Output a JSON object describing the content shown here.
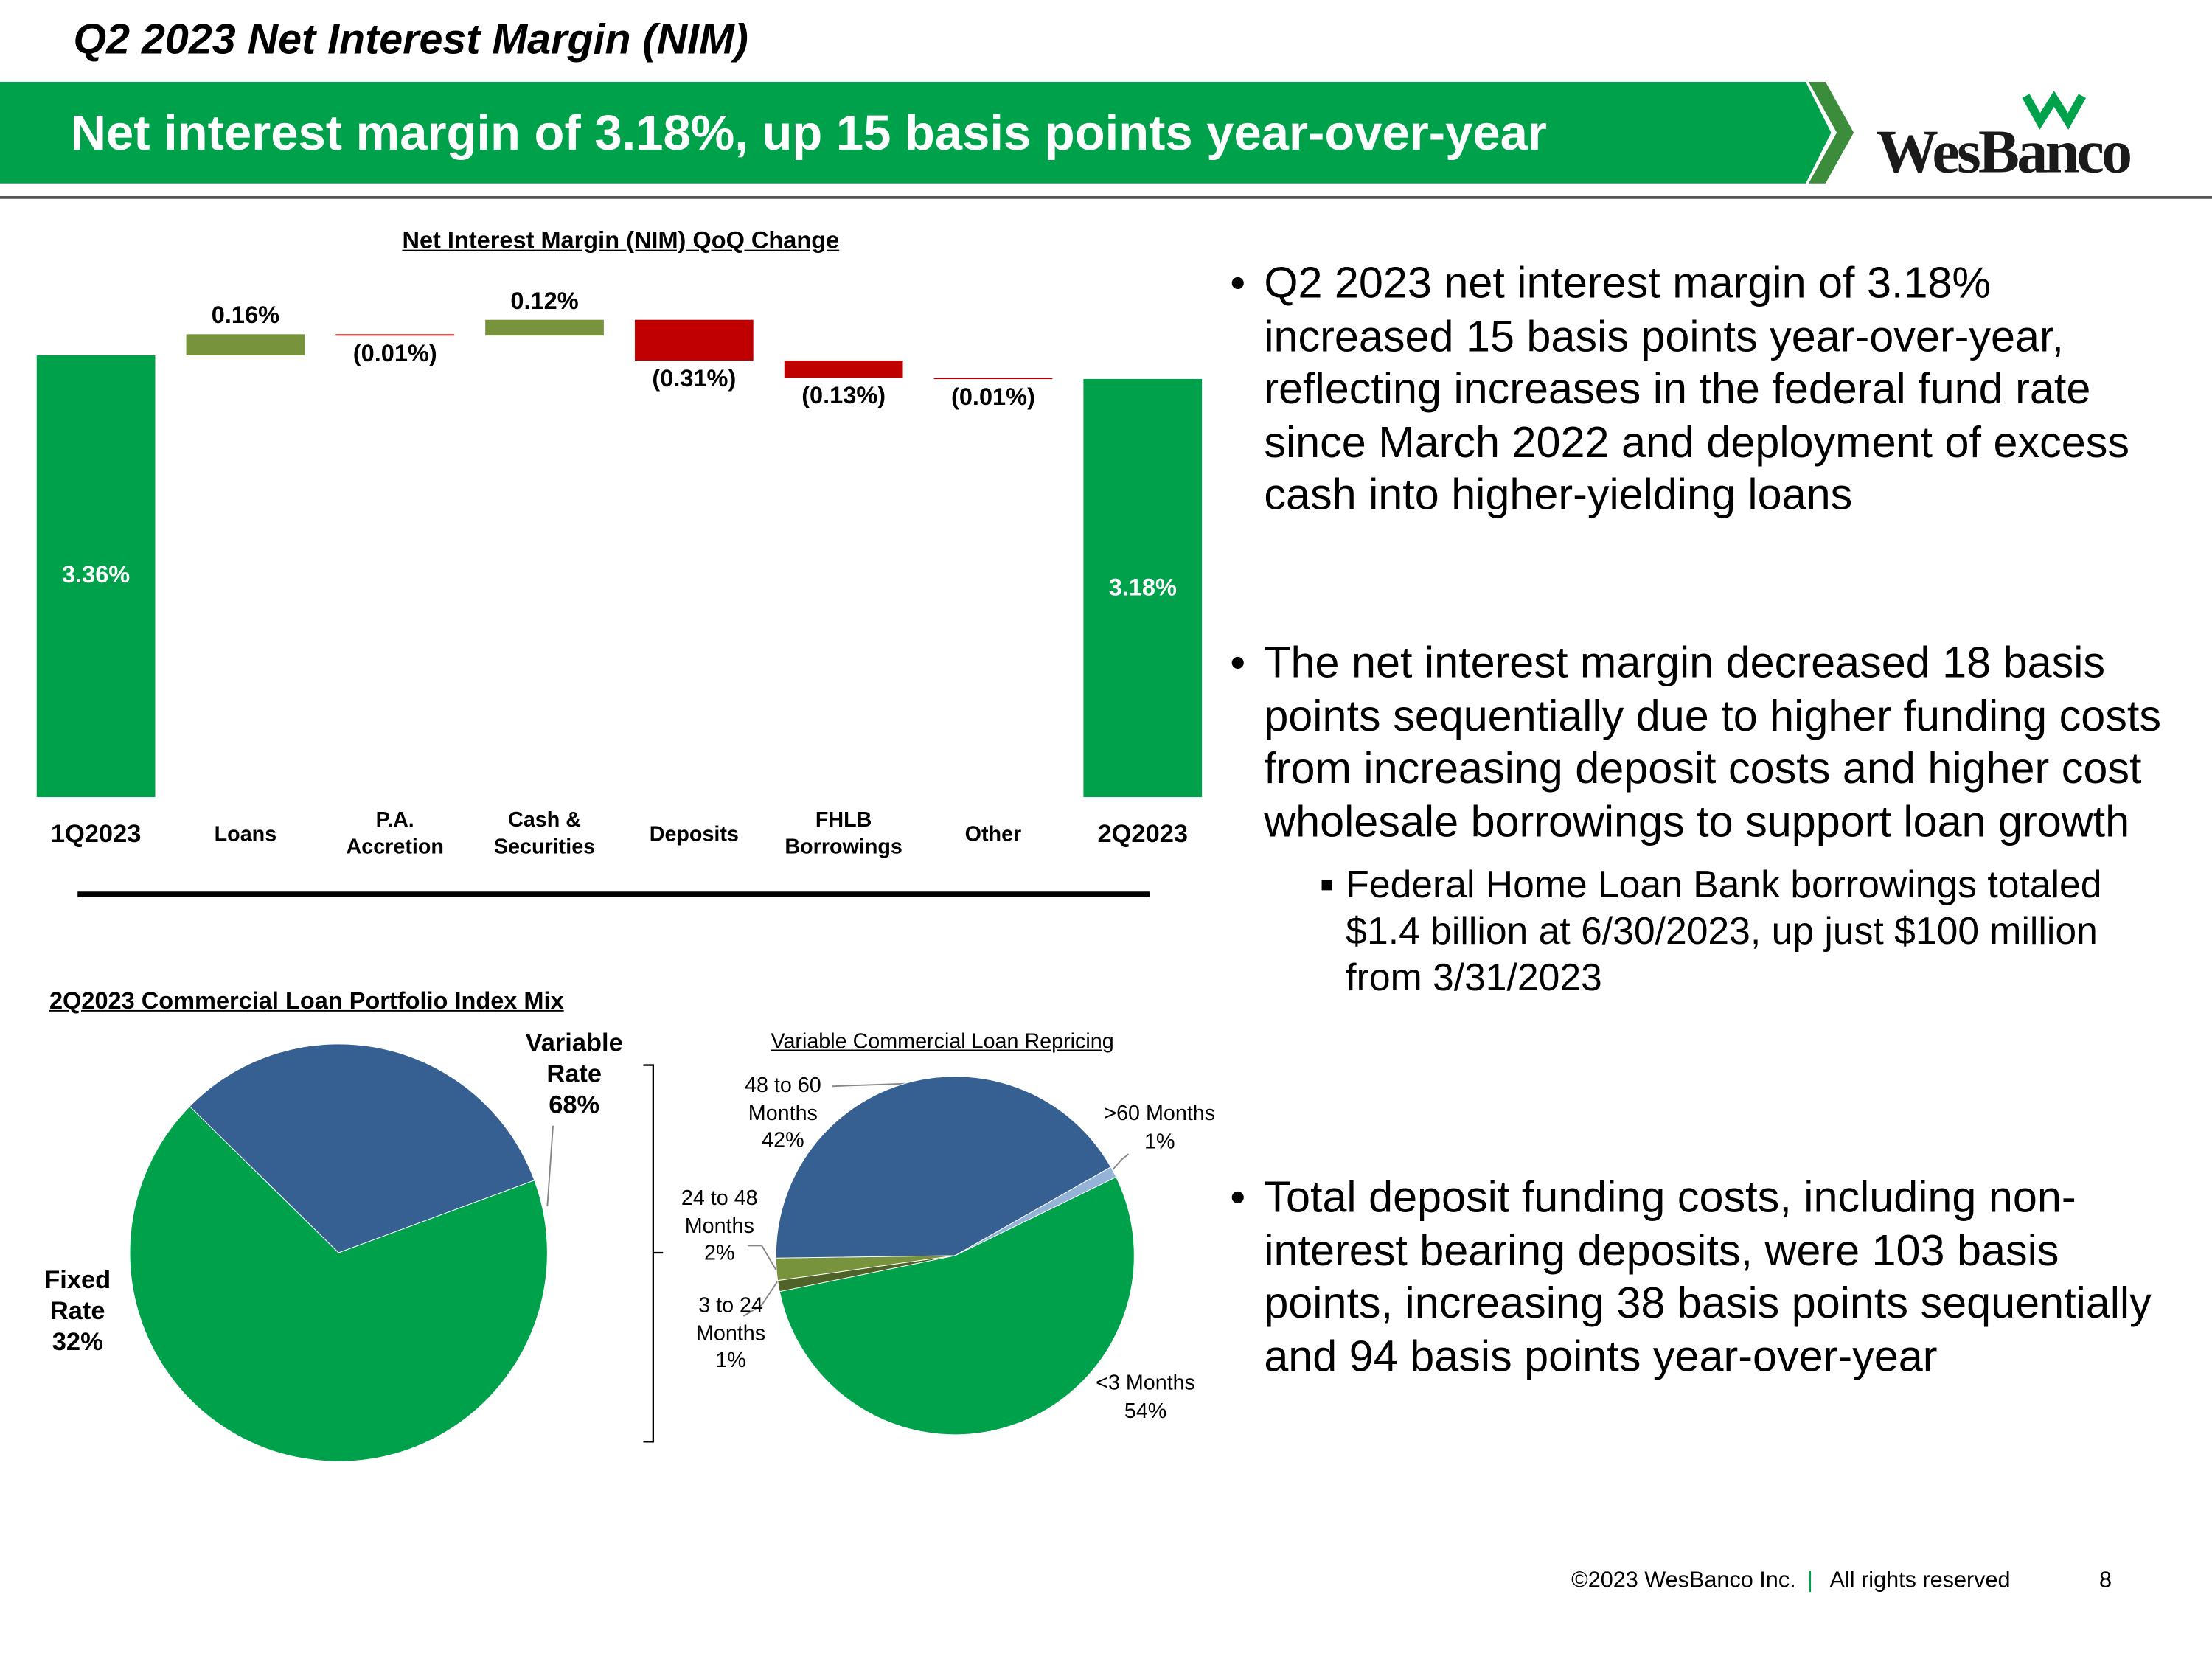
{
  "header": {
    "title": "Q2 2023 Net Interest Margin (NIM)",
    "banner": "Net interest margin of 3.18%, up 15 basis points year-over-year",
    "logo": "WesBanco"
  },
  "chart_data": [
    {
      "type": "waterfall",
      "title": "Net Interest Margin (NIM) QoQ Change",
      "categories": [
        "1Q2023",
        "Loans",
        "P.A. Accretion",
        "Cash & Securities",
        "Deposits",
        "FHLB Borrowings",
        "Other",
        "2Q2023"
      ],
      "values": [
        3.36,
        0.16,
        -0.01,
        0.12,
        -0.31,
        -0.13,
        -0.01,
        3.18
      ],
      "value_labels": [
        "3.36%",
        "0.16%",
        "(0.01%)",
        "0.12%",
        "(0.31%)",
        "(0.13%)",
        "(0.01%)",
        "3.18%"
      ],
      "colors": [
        "#00a14b",
        "#77933c",
        "#c00000",
        "#77933c",
        "#c00000",
        "#c00000",
        "#c00000",
        "#00a14b"
      ]
    },
    {
      "type": "pie",
      "title": "2Q2023 Commercial Loan Portfolio Index Mix",
      "categories": [
        "Fixed Rate",
        "Variable Rate"
      ],
      "values": [
        32,
        68
      ],
      "value_labels": [
        "32%",
        "68%"
      ],
      "colors": [
        "#376092",
        "#00a14b"
      ]
    },
    {
      "type": "pie",
      "title": "Variable Commercial Loan Repricing",
      "categories": [
        "<3 Months",
        "3 to 24 Months",
        "24 to 48 Months",
        "48 to 60 Months",
        ">60 Months"
      ],
      "values": [
        54,
        1,
        2,
        42,
        1
      ],
      "value_labels": [
        "54%",
        "1%",
        "2%",
        "42%",
        "1%"
      ],
      "colors": [
        "#00a14b",
        "#4f6228",
        "#77933c",
        "#376092",
        "#95b3d7"
      ]
    }
  ],
  "bullets": [
    {
      "text": "Q2 2023 net interest margin of 3.18% increased 15 basis points year-over-year, reflecting increases in the federal fund rate since March 2022 and deployment of excess cash into higher-yielding loans"
    },
    {
      "text": "The net interest margin decreased 18 basis points sequentially due to higher funding costs from increasing deposit costs and higher cost wholesale borrowings to support loan growth",
      "sub": [
        "Federal Home Loan Bank borrowings totaled $1.4 billion at 6/30/2023, up just $100 million from 3/31/2023"
      ]
    },
    {
      "text": "Total deposit funding costs, including non-interest bearing deposits, were 103 basis points, increasing 38 basis points sequentially and 94 basis points year-over-year"
    }
  ],
  "footer": {
    "copyright": "©2023 WesBanco Inc.",
    "separator": "|",
    "rights": "All rights reserved",
    "page": "8"
  }
}
